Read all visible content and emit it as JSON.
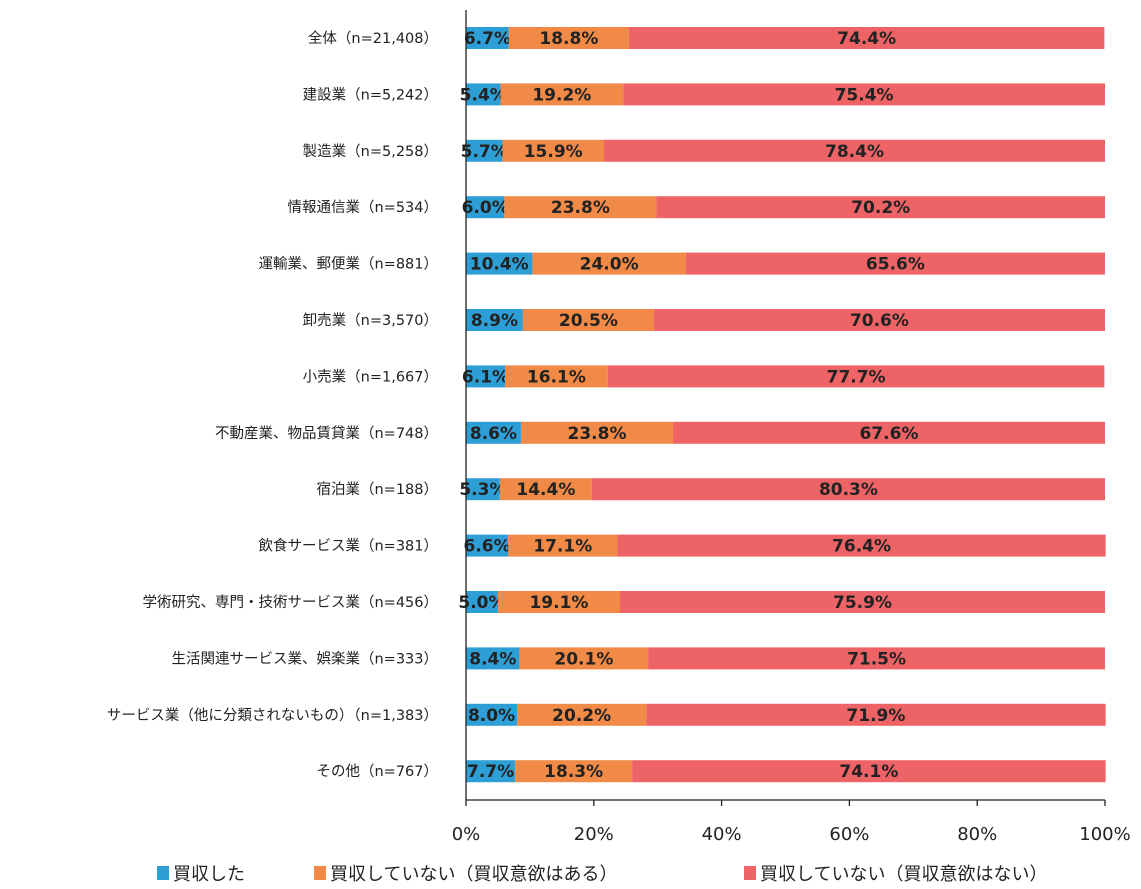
{
  "chart_data": {
    "type": "bar",
    "orientation": "horizontal",
    "stacked": "100%",
    "categories": [
      "全体（n=21,408）",
      "建設業（n=5,242）",
      "製造業（n=5,258）",
      "情報通信業（n=534）",
      "運輸業、郵便業（n=881）",
      "卸売業（n=3,570）",
      "小売業（n=1,667）",
      "不動産業、物品賃貸業（n=748）",
      "宿泊業（n=188）",
      "飲食サービス業（n=381）",
      "学術研究、専門・技術サービス業（n=456）",
      "生活関連サービス業、娯楽業（n=333）",
      "サービス業（他に分類されないもの）（n=1,383）",
      "その他（n=767）"
    ],
    "series": [
      {
        "name": "買収した",
        "color": "#2e9fd6",
        "values": [
          6.7,
          5.4,
          5.7,
          6.0,
          10.4,
          8.9,
          6.1,
          8.6,
          5.3,
          6.6,
          5.0,
          8.4,
          8.0,
          7.7
        ]
      },
      {
        "name": "買収していない（買収意欲はある）",
        "color": "#f08a46",
        "values": [
          18.8,
          19.2,
          15.9,
          23.8,
          24.0,
          20.5,
          16.1,
          23.8,
          14.4,
          17.1,
          19.1,
          20.1,
          20.2,
          18.3
        ]
      },
      {
        "name": "買収していない（買収意欲はない）",
        "color": "#ee6466",
        "values": [
          74.4,
          75.4,
          78.4,
          70.2,
          65.6,
          70.6,
          77.7,
          67.6,
          80.3,
          76.4,
          75.9,
          71.5,
          71.9,
          74.1
        ]
      }
    ],
    "xlim": [
      0,
      100
    ],
    "x_ticks": [
      "0%",
      "20%",
      "40%",
      "60%",
      "80%",
      "100%"
    ],
    "grid": false,
    "legend_position": "bottom"
  }
}
